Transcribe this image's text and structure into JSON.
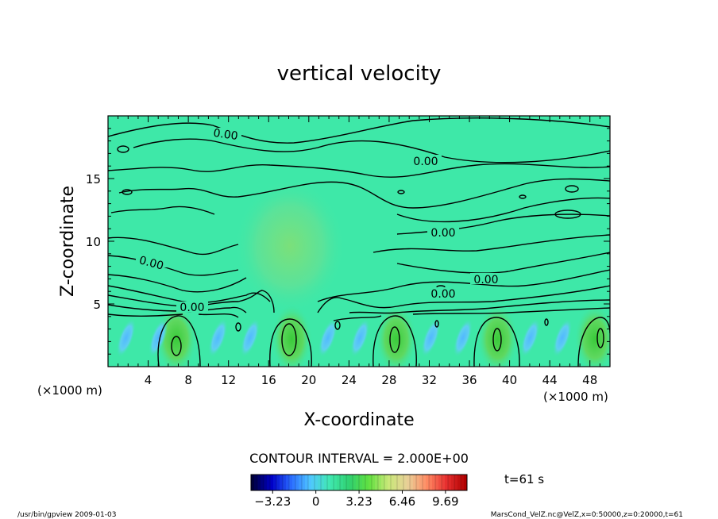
{
  "chart_data": {
    "type": "heatmap",
    "title": "vertical velocity",
    "xlabel": "X-coordinate",
    "ylabel": "Z-coordinate",
    "x_unit_left": "(×1000 m)",
    "x_unit_right": "(×1000 m)",
    "xlim": [
      0,
      50
    ],
    "ylim": [
      0,
      20
    ],
    "x_ticks": [
      4,
      8,
      12,
      16,
      20,
      24,
      28,
      32,
      36,
      40,
      44,
      48
    ],
    "y_ticks": [
      5,
      10,
      15
    ],
    "contour_interval_text": "CONTOUR INTERVAL = 2.000E+00",
    "contour_labels": [
      "0.00",
      "0.00",
      "0.00",
      "0.00",
      "0.00",
      "0.00",
      "0.00"
    ],
    "updraft_centers_x": [
      6.8,
      18.3,
      28.7,
      38.8,
      48.5
    ],
    "colorbar": {
      "min": -4.85,
      "max": 11.3,
      "ticks": [
        -3.23,
        0,
        3.23,
        6.46,
        9.69
      ],
      "tick_labels": [
        "−3.23",
        "0",
        "3.23",
        "6.46",
        "9.69"
      ],
      "colors": [
        "#00003c",
        "#0000c8",
        "#2a6cff",
        "#50c8ff",
        "#40e8b0",
        "#30d070",
        "#60e040",
        "#c8e878",
        "#e8d098",
        "#ff8c64",
        "#e83030",
        "#b00000"
      ]
    },
    "time_label": "t=61 s"
  },
  "footer": {
    "left": "/usr/bin/gpview   2009-01-03",
    "right": "MarsCond_VelZ.nc@VelZ,x=0:50000,z=0:20000,t=61"
  }
}
